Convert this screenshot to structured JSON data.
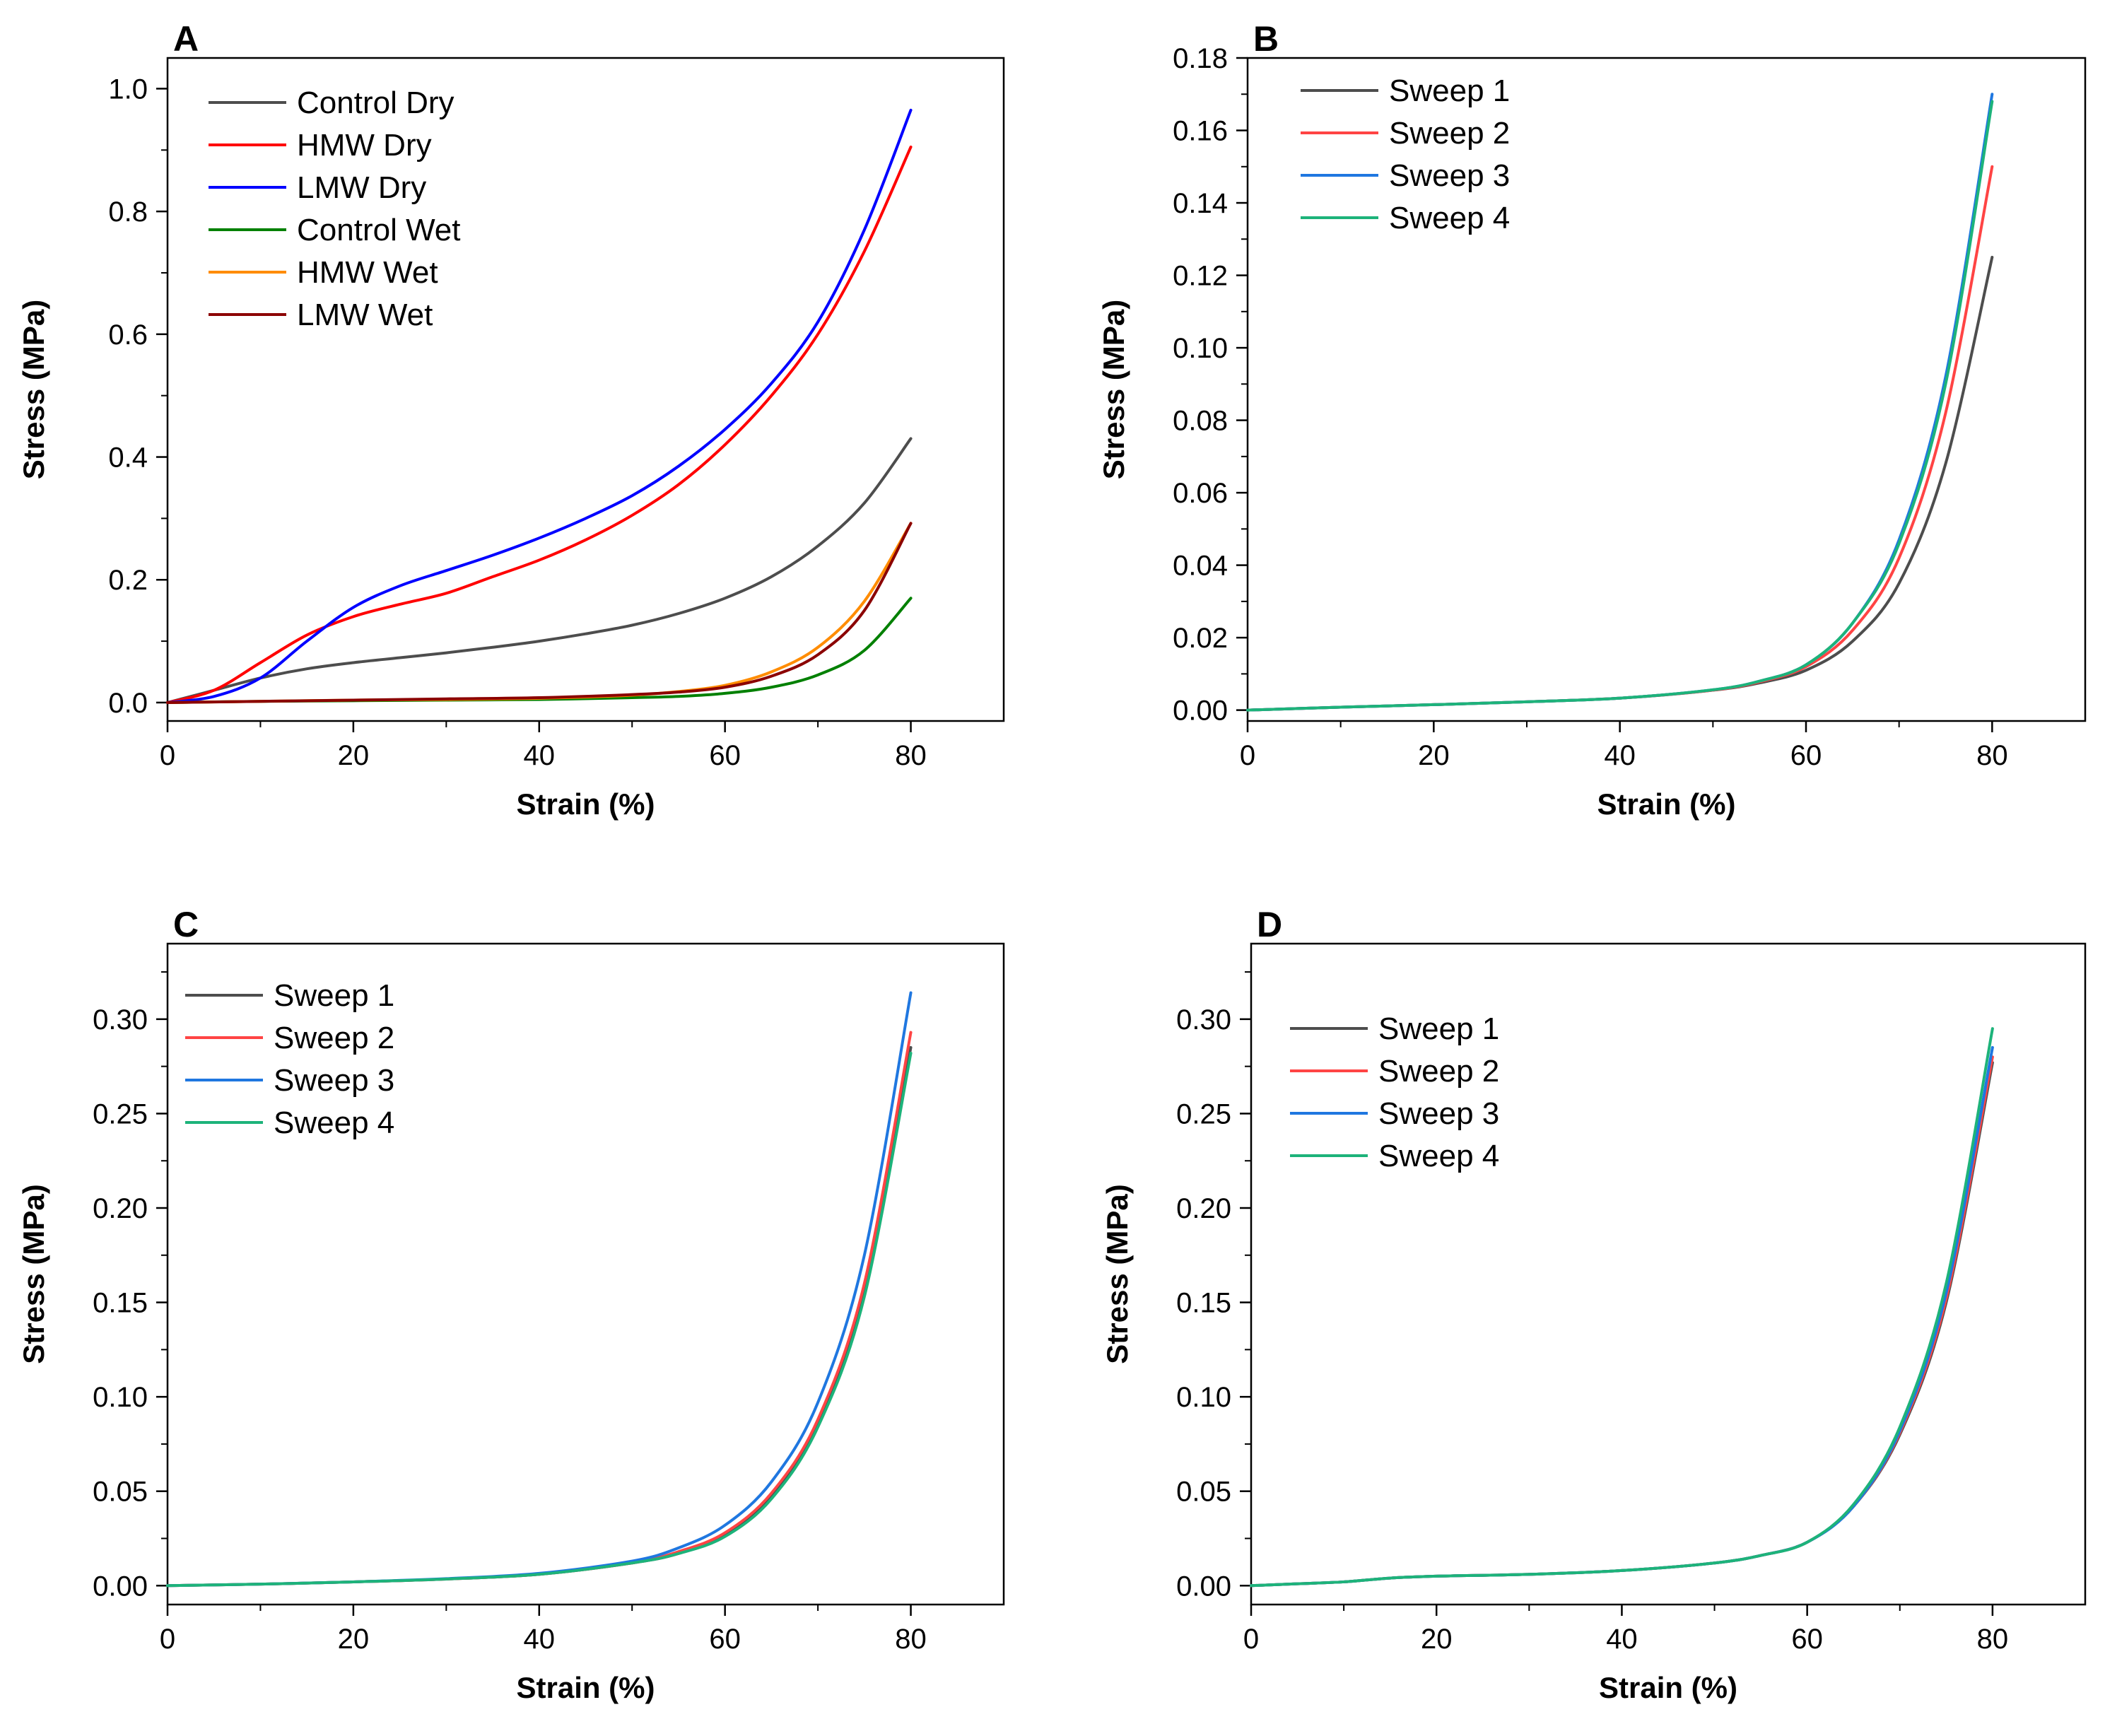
{
  "chart_data": [
    {
      "type": "line",
      "panel": "A",
      "xlabel": "Strain (%)",
      "ylabel": "Stress (MPa)",
      "xlim": [
        0,
        90
      ],
      "ylim": [
        -0.03,
        1.05
      ],
      "xticks": [
        0,
        20,
        40,
        60,
        80
      ],
      "xtick_labels": [
        "0",
        "20",
        "40",
        "60",
        "80"
      ],
      "yticks": [
        0.0,
        0.2,
        0.4,
        0.6,
        0.8,
        1.0
      ],
      "ytick_labels": [
        "0.0",
        "0.2",
        "0.4",
        "0.6",
        "0.8",
        "1.0"
      ],
      "grid": false,
      "legend_position": "top-left",
      "series": [
        {
          "name": "Control Dry",
          "color": "#4d4d4d",
          "x": [
            0,
            5,
            10,
            15,
            20,
            25,
            30,
            35,
            40,
            45,
            50,
            55,
            60,
            65,
            70,
            75,
            80
          ],
          "y": [
            0,
            0.02,
            0.04,
            0.055,
            0.065,
            0.073,
            0.081,
            0.09,
            0.1,
            0.112,
            0.126,
            0.145,
            0.17,
            0.205,
            0.255,
            0.325,
            0.43
          ]
        },
        {
          "name": "HMW Dry",
          "color": "#ff0000",
          "x": [
            0,
            5,
            10,
            15,
            20,
            25,
            30,
            35,
            40,
            45,
            50,
            55,
            60,
            65,
            70,
            75,
            80
          ],
          "y": [
            0,
            0.02,
            0.065,
            0.11,
            0.14,
            0.16,
            0.178,
            0.205,
            0.232,
            0.265,
            0.305,
            0.355,
            0.42,
            0.5,
            0.6,
            0.735,
            0.905
          ]
        },
        {
          "name": "LMW Dry",
          "color": "#0000ff",
          "x": [
            0,
            5,
            10,
            15,
            20,
            25,
            30,
            35,
            40,
            45,
            50,
            55,
            60,
            65,
            70,
            75,
            80
          ],
          "y": [
            0,
            0.01,
            0.04,
            0.1,
            0.155,
            0.19,
            0.215,
            0.24,
            0.268,
            0.3,
            0.337,
            0.385,
            0.445,
            0.52,
            0.62,
            0.77,
            0.965
          ]
        },
        {
          "name": "Control Wet",
          "color": "#008000",
          "x": [
            0,
            10,
            20,
            30,
            40,
            50,
            55,
            60,
            65,
            70,
            75,
            80
          ],
          "y": [
            0,
            0.002,
            0.003,
            0.004,
            0.005,
            0.008,
            0.01,
            0.015,
            0.025,
            0.045,
            0.085,
            0.17
          ]
        },
        {
          "name": "HMW Wet",
          "color": "#ff8c00",
          "x": [
            0,
            10,
            20,
            30,
            40,
            50,
            55,
            60,
            65,
            70,
            75,
            80
          ],
          "y": [
            0,
            0.002,
            0.004,
            0.005,
            0.007,
            0.012,
            0.018,
            0.028,
            0.05,
            0.09,
            0.165,
            0.292
          ]
        },
        {
          "name": "LMW Wet",
          "color": "#8b0000",
          "x": [
            0,
            10,
            20,
            30,
            40,
            50,
            55,
            60,
            65,
            70,
            75,
            80
          ],
          "y": [
            0,
            0.002,
            0.004,
            0.006,
            0.008,
            0.013,
            0.017,
            0.025,
            0.043,
            0.078,
            0.15,
            0.292
          ]
        }
      ]
    },
    {
      "type": "line",
      "panel": "B",
      "xlabel": "Strain (%)",
      "ylabel": "Stress (MPa)",
      "xlim": [
        0,
        90
      ],
      "ylim": [
        -0.003,
        0.18
      ],
      "xticks": [
        0,
        20,
        40,
        60,
        80
      ],
      "xtick_labels": [
        "0",
        "20",
        "40",
        "60",
        "80"
      ],
      "yticks": [
        0.0,
        0.02,
        0.04,
        0.06,
        0.08,
        0.1,
        0.12,
        0.14,
        0.16,
        0.18
      ],
      "ytick_labels": [
        "0.00",
        "0.02",
        "0.04",
        "0.06",
        "0.08",
        "0.10",
        "0.12",
        "0.14",
        "0.16",
        "0.18"
      ],
      "grid": false,
      "legend_position": "top-left",
      "series": [
        {
          "name": "Sweep 1",
          "color": "#4d4d4d",
          "x": [
            0,
            10,
            20,
            30,
            40,
            50,
            55,
            60,
            65,
            70,
            75,
            80
          ],
          "y": [
            0,
            0.0008,
            0.0015,
            0.0023,
            0.0033,
            0.0055,
            0.0075,
            0.011,
            0.019,
            0.035,
            0.068,
            0.125
          ]
        },
        {
          "name": "Sweep 2",
          "color": "#ff4444",
          "x": [
            0,
            10,
            20,
            30,
            40,
            50,
            55,
            60,
            65,
            70,
            75,
            80
          ],
          "y": [
            0,
            0.0008,
            0.0015,
            0.0023,
            0.0033,
            0.0055,
            0.0078,
            0.012,
            0.022,
            0.042,
            0.082,
            0.15
          ]
        },
        {
          "name": "Sweep 3",
          "color": "#1f77e0",
          "x": [
            0,
            10,
            20,
            30,
            40,
            50,
            55,
            60,
            65,
            70,
            75,
            80
          ],
          "y": [
            0,
            0.0008,
            0.0015,
            0.0023,
            0.0033,
            0.0056,
            0.008,
            0.0125,
            0.024,
            0.047,
            0.092,
            0.17
          ]
        },
        {
          "name": "Sweep 4",
          "color": "#1db37a",
          "x": [
            0,
            10,
            20,
            30,
            40,
            50,
            55,
            60,
            65,
            70,
            75,
            80
          ],
          "y": [
            0,
            0.0008,
            0.0015,
            0.0023,
            0.0033,
            0.0056,
            0.008,
            0.0125,
            0.024,
            0.046,
            0.09,
            0.168
          ]
        }
      ]
    },
    {
      "type": "line",
      "panel": "C",
      "xlabel": "Strain (%)",
      "ylabel": "Stress (MPa)",
      "xlim": [
        0,
        90
      ],
      "ylim": [
        -0.01,
        0.34
      ],
      "xticks": [
        0,
        20,
        40,
        60,
        80
      ],
      "xtick_labels": [
        "0",
        "20",
        "40",
        "60",
        "80"
      ],
      "yticks": [
        0.0,
        0.05,
        0.1,
        0.15,
        0.2,
        0.25,
        0.3
      ],
      "ytick_labels": [
        "0.00",
        "0.05",
        "0.10",
        "0.15",
        "0.20",
        "0.25",
        "0.30"
      ],
      "grid": false,
      "legend_position": "top-left",
      "series": [
        {
          "name": "Sweep 1",
          "color": "#4d4d4d",
          "x": [
            0,
            10,
            20,
            30,
            40,
            50,
            55,
            60,
            65,
            70,
            75,
            80
          ],
          "y": [
            0,
            0.0008,
            0.002,
            0.0035,
            0.006,
            0.012,
            0.017,
            0.027,
            0.047,
            0.085,
            0.155,
            0.285
          ]
        },
        {
          "name": "Sweep 2",
          "color": "#ff4444",
          "x": [
            0,
            10,
            20,
            30,
            40,
            50,
            55,
            60,
            65,
            70,
            75,
            80
          ],
          "y": [
            0,
            0.0008,
            0.002,
            0.0035,
            0.006,
            0.012,
            0.018,
            0.028,
            0.049,
            0.088,
            0.16,
            0.293
          ]
        },
        {
          "name": "Sweep 3",
          "color": "#1f77e0",
          "x": [
            0,
            10,
            20,
            30,
            40,
            50,
            55,
            60,
            65,
            70,
            75,
            80
          ],
          "y": [
            0,
            0.0008,
            0.002,
            0.0037,
            0.0065,
            0.013,
            0.02,
            0.032,
            0.055,
            0.097,
            0.175,
            0.314
          ]
        },
        {
          "name": "Sweep 4",
          "color": "#1db37a",
          "x": [
            0,
            10,
            20,
            30,
            40,
            50,
            55,
            60,
            65,
            70,
            75,
            80
          ],
          "y": [
            0,
            0.0008,
            0.002,
            0.0035,
            0.006,
            0.012,
            0.017,
            0.026,
            0.046,
            0.084,
            0.153,
            0.282
          ]
        }
      ]
    },
    {
      "type": "line",
      "panel": "D",
      "xlabel": "Strain (%)",
      "ylabel": "Stress (MPa)",
      "xlim": [
        0,
        90
      ],
      "ylim": [
        -0.01,
        0.34
      ],
      "xticks": [
        0,
        20,
        40,
        60,
        80
      ],
      "xtick_labels": [
        "0",
        "20",
        "40",
        "60",
        "80"
      ],
      "yticks": [
        0.0,
        0.05,
        0.1,
        0.15,
        0.2,
        0.25,
        0.3
      ],
      "ytick_labels": [
        "0.00",
        "0.05",
        "0.10",
        "0.15",
        "0.20",
        "0.25",
        "0.30"
      ],
      "grid": false,
      "legend_position": "top-left",
      "series": [
        {
          "name": "Sweep 1",
          "color": "#4d4d4d",
          "x": [
            0,
            5,
            10,
            15,
            20,
            30,
            40,
            50,
            55,
            60,
            65,
            70,
            75,
            80
          ],
          "y": [
            0,
            0.001,
            0.002,
            0.004,
            0.005,
            0.006,
            0.008,
            0.012,
            0.016,
            0.023,
            0.042,
            0.08,
            0.15,
            0.277
          ]
        },
        {
          "name": "Sweep 2",
          "color": "#ff4444",
          "x": [
            0,
            5,
            10,
            15,
            20,
            30,
            40,
            50,
            55,
            60,
            65,
            70,
            75,
            80
          ],
          "y": [
            0,
            0.001,
            0.002,
            0.004,
            0.005,
            0.006,
            0.008,
            0.012,
            0.016,
            0.023,
            0.042,
            0.081,
            0.152,
            0.28
          ]
        },
        {
          "name": "Sweep 3",
          "color": "#1f77e0",
          "x": [
            0,
            5,
            10,
            15,
            20,
            30,
            40,
            50,
            55,
            60,
            65,
            70,
            75,
            80
          ],
          "y": [
            0,
            0.001,
            0.002,
            0.004,
            0.005,
            0.006,
            0.008,
            0.012,
            0.016,
            0.023,
            0.042,
            0.082,
            0.155,
            0.285
          ]
        },
        {
          "name": "Sweep 4",
          "color": "#1db37a",
          "x": [
            0,
            5,
            10,
            15,
            20,
            30,
            40,
            50,
            55,
            60,
            65,
            70,
            75,
            80
          ],
          "y": [
            0,
            0.001,
            0.002,
            0.004,
            0.005,
            0.006,
            0.008,
            0.012,
            0.016,
            0.023,
            0.043,
            0.084,
            0.16,
            0.295
          ]
        }
      ]
    }
  ]
}
